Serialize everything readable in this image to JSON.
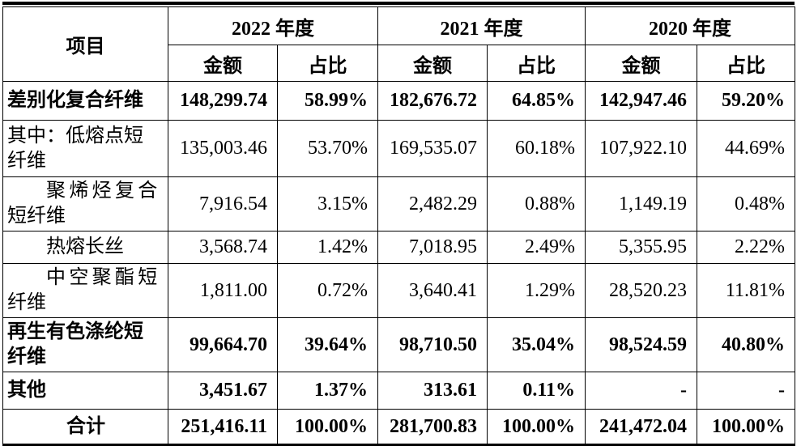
{
  "table": {
    "item_header": "项目",
    "year_groups": [
      {
        "year": "2022 年度",
        "amount_label": "金额",
        "share_label": "占比"
      },
      {
        "year": "2021 年度",
        "amount_label": "金额",
        "share_label": "占比"
      },
      {
        "year": "2020 年度",
        "amount_label": "金额",
        "share_label": "占比"
      }
    ],
    "rows": [
      {
        "label": "差别化复合纤维",
        "bold": true,
        "indent": false,
        "align": "left",
        "values": [
          "148,299.74",
          "58.99%",
          "182,676.72",
          "64.85%",
          "142,947.46",
          "59.20%"
        ]
      },
      {
        "label": "其中：低熔点短\n纤维",
        "bold": false,
        "indent": false,
        "align": "left",
        "values": [
          "135,003.46",
          "53.70%",
          "169,535.07",
          "60.18%",
          "107,922.10",
          "44.69%"
        ]
      },
      {
        "label": "聚烯烃复合\n短纤维",
        "bold": false,
        "indent": true,
        "align": "left",
        "values": [
          "7,916.54",
          "3.15%",
          "2,482.29",
          "0.88%",
          "1,149.19",
          "0.48%"
        ]
      },
      {
        "label": "热熔长丝",
        "bold": false,
        "indent": true,
        "align": "left",
        "values": [
          "3,568.74",
          "1.42%",
          "7,018.95",
          "2.49%",
          "5,355.95",
          "2.22%"
        ]
      },
      {
        "label": "中空聚酯短\n纤维",
        "bold": false,
        "indent": true,
        "align": "left",
        "values": [
          "1,811.00",
          "0.72%",
          "3,640.41",
          "1.29%",
          "28,520.23",
          "11.81%"
        ]
      },
      {
        "label": "再生有色涤纶短\n纤维",
        "bold": true,
        "indent": false,
        "align": "left",
        "values": [
          "99,664.70",
          "39.64%",
          "98,710.50",
          "35.04%",
          "98,524.59",
          "40.80%"
        ]
      },
      {
        "label": "其他",
        "bold": true,
        "indent": false,
        "align": "left",
        "values": [
          "3,451.67",
          "1.37%",
          "313.61",
          "0.11%",
          "-",
          "-"
        ]
      },
      {
        "label": "合计",
        "bold": true,
        "indent": false,
        "align": "center",
        "values": [
          "251,416.11",
          "100.00%",
          "281,700.83",
          "100.00%",
          "241,472.04",
          "100.00%"
        ]
      }
    ]
  }
}
